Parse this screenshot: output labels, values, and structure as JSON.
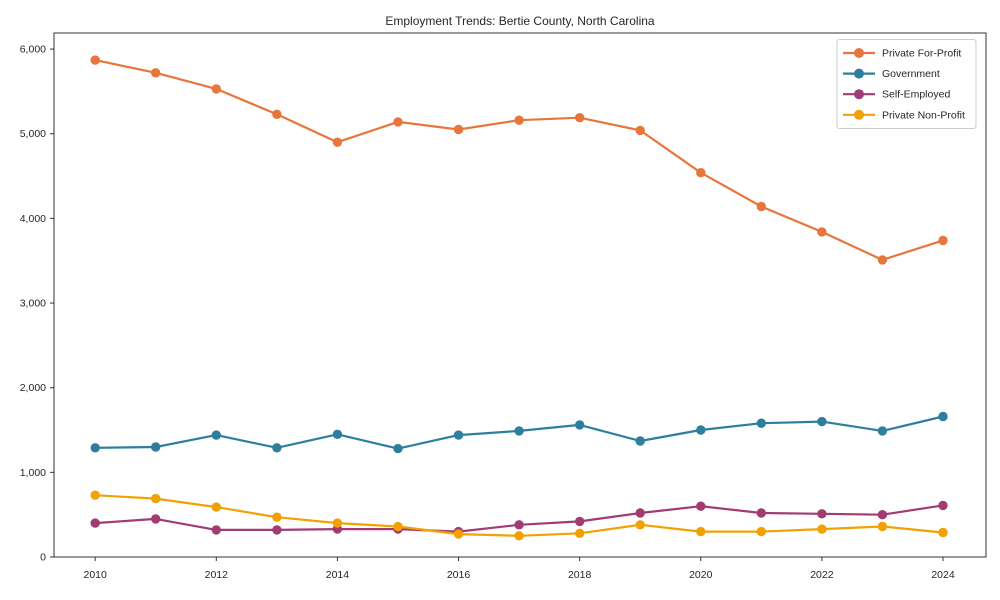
{
  "figure": {
    "background": "#ffffff",
    "axis_color": "#333333",
    "text_color": "#262626",
    "legend_border_color": "#cccccc"
  },
  "chart_data": {
    "type": "line",
    "title": "Employment Trends: Bertie County, North Carolina",
    "xlabel": "",
    "ylabel": "",
    "x": [
      2010,
      2011,
      2012,
      2013,
      2014,
      2015,
      2016,
      2017,
      2018,
      2019,
      2020,
      2021,
      2022,
      2023,
      2024
    ],
    "series": [
      {
        "name": "Private For-Profit",
        "color": "#e8763c",
        "values": [
          5870,
          5720,
          5530,
          5230,
          4900,
          5140,
          5050,
          5160,
          5190,
          5040,
          4540,
          4140,
          3840,
          3510,
          3740
        ]
      },
      {
        "name": "Government",
        "color": "#2e7f9e",
        "values": [
          1290,
          1300,
          1440,
          1290,
          1450,
          1280,
          1440,
          1490,
          1560,
          1370,
          1500,
          1580,
          1600,
          1490,
          1660
        ]
      },
      {
        "name": "Self-Employed",
        "color": "#a23b72",
        "values": [
          400,
          450,
          320,
          320,
          330,
          330,
          300,
          380,
          420,
          520,
          600,
          520,
          510,
          500,
          610
        ]
      },
      {
        "name": "Private Non-Profit",
        "color": "#f2a104",
        "values": [
          730,
          690,
          590,
          470,
          400,
          360,
          270,
          250,
          280,
          380,
          300,
          300,
          330,
          360,
          290
        ]
      }
    ],
    "xticks": [
      2010,
      2012,
      2014,
      2016,
      2018,
      2020,
      2022,
      2024
    ],
    "yticks": [
      0,
      1000,
      2000,
      3000,
      4000,
      5000,
      6000
    ],
    "ytick_labels": [
      "0",
      "1,000",
      "2,000",
      "3,000",
      "4,000",
      "5,000",
      "6,000"
    ],
    "xlim": [
      2009.32,
      2024.71
    ],
    "ylim": [
      0,
      6190
    ],
    "grid": false,
    "legend_position": "upper right"
  }
}
